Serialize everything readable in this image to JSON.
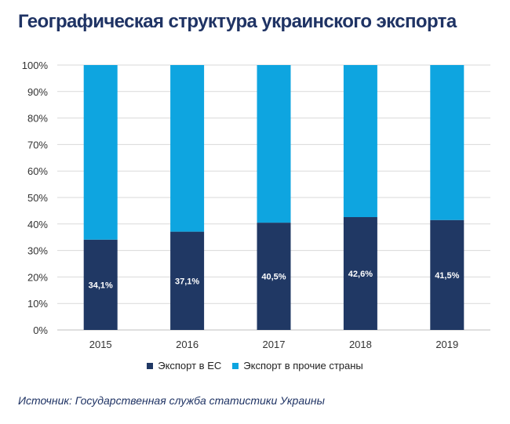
{
  "title": "Географическая структура украинского экспорта",
  "source": "Источник: Государственная служба статистики Украины",
  "colors": {
    "eu": "#203864",
    "other": "#0ea5e0",
    "grid": "#d9d9d9",
    "axis_text": "#333333",
    "title": "#1f3364"
  },
  "chart_data": {
    "type": "bar",
    "stacked": true,
    "percent": true,
    "categories": [
      "2015",
      "2016",
      "2017",
      "2018",
      "2019"
    ],
    "series": [
      {
        "name": "Экспорт в ЕС",
        "values": [
          34.1,
          37.1,
          40.5,
          42.6,
          41.5
        ]
      },
      {
        "name": "Экспорт в прочие страны",
        "values": [
          65.9,
          62.9,
          59.5,
          57.4,
          58.5
        ]
      }
    ],
    "data_labels": [
      "34,1%",
      "37,1%",
      "40,5%",
      "42,6%",
      "41,5%"
    ],
    "y_ticks": [
      "0%",
      "10%",
      "20%",
      "30%",
      "40%",
      "50%",
      "60%",
      "70%",
      "80%",
      "90%",
      "100%"
    ],
    "ylim": [
      0,
      100
    ],
    "grid": true,
    "legend_position": "bottom"
  }
}
